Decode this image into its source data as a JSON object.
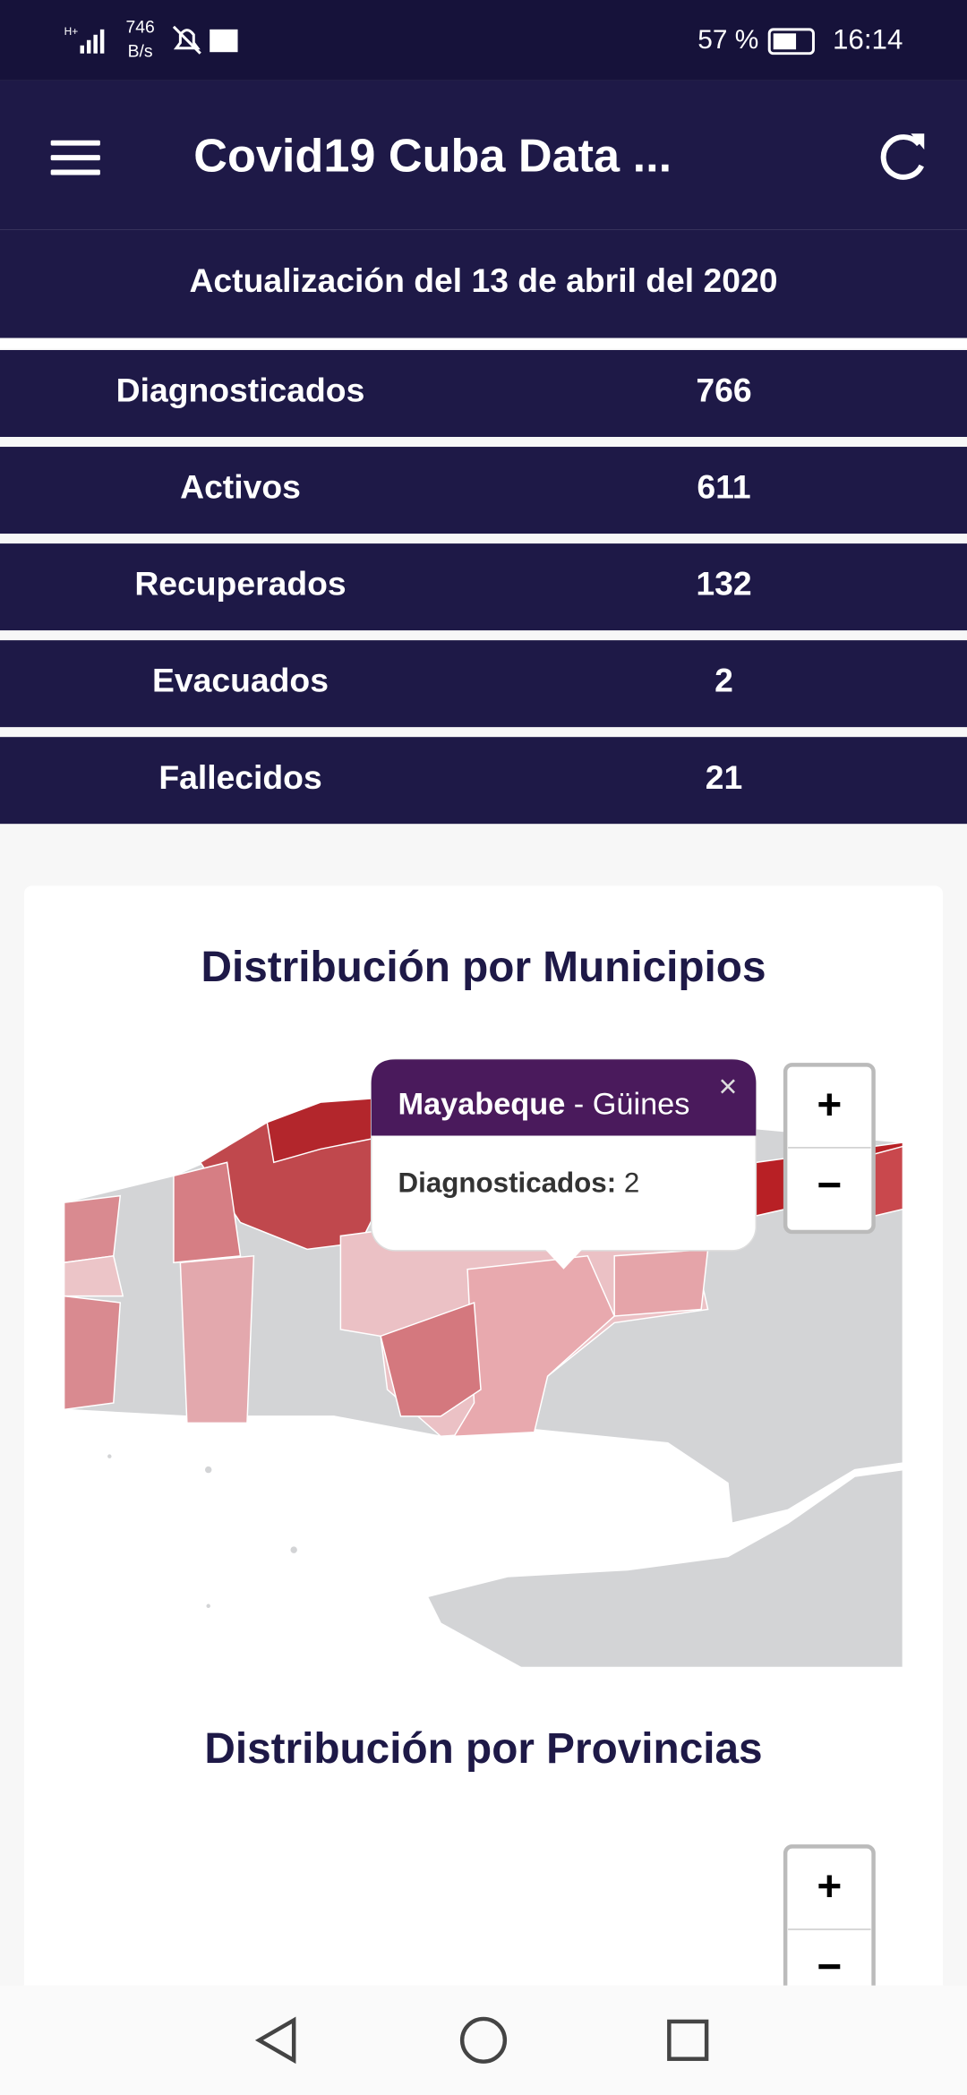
{
  "status_bar": {
    "speed": "746",
    "speed_unit": "B/s",
    "battery": "57 %",
    "time": "16:14"
  },
  "app_bar": {
    "title": "Covid19 Cuba Data ..."
  },
  "update": "Actualización del 13 de abril del 2020",
  "stats": [
    {
      "label": "Diagnosticados",
      "value": "766"
    },
    {
      "label": "Activos",
      "value": "611"
    },
    {
      "label": "Recuperados",
      "value": "132"
    },
    {
      "label": "Evacuados",
      "value": "2"
    },
    {
      "label": "Fallecidos",
      "value": "21"
    }
  ],
  "map_municipios": {
    "title": "Distribución por Municipios",
    "popup": {
      "province": "Mayabeque",
      "municipality": " - Güines",
      "label": "Diagnosticados:",
      "value": " 2",
      "close": "×"
    },
    "zoom_in": "+",
    "zoom_out": "−"
  },
  "map_provincias": {
    "title": "Distribución por Provincias",
    "zoom_in": "+",
    "zoom_out": "−"
  }
}
